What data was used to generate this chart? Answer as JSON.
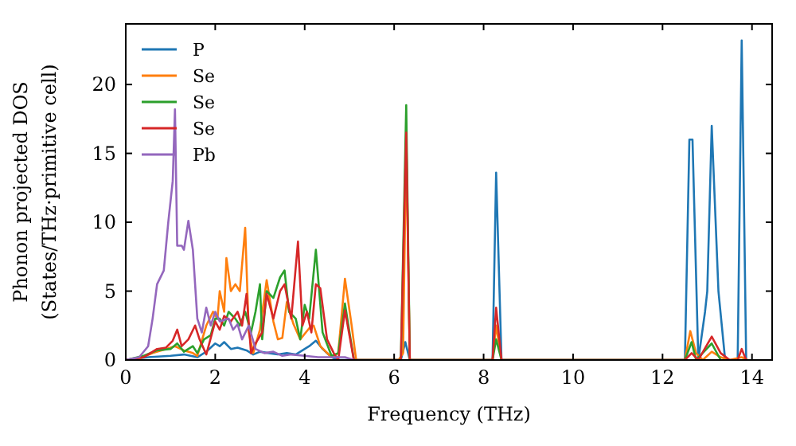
{
  "chart_data": {
    "type": "line",
    "xlabel": "Frequency (THz)",
    "ylabel": "Phonon projected DOS\n(States/THz·primitive cell)",
    "xlim": [
      0,
      14.45
    ],
    "ylim": [
      0,
      24.4
    ],
    "xticks": [
      0,
      2,
      4,
      6,
      8,
      10,
      12,
      14
    ],
    "yticks": [
      0,
      5,
      10,
      15,
      20
    ],
    "grid": false,
    "legend": "top left",
    "line_style": "solid",
    "series": [
      {
        "name": "P",
        "color": "#1f77b4",
        "x": [
          0,
          0.5,
          1,
          1.3,
          1.6,
          1.8,
          2.0,
          2.1,
          2.2,
          2.35,
          2.5,
          2.7,
          2.85,
          3.0,
          3.2,
          3.4,
          3.6,
          3.8,
          4.1,
          4.25,
          4.4,
          4.6,
          4.75,
          6.15,
          6.25,
          6.35,
          8.2,
          8.28,
          8.4,
          12.5,
          12.6,
          12.67,
          12.8,
          12.95,
          13.0,
          13.1,
          13.25,
          13.4,
          13.68,
          13.77,
          13.87
        ],
        "values": [
          0,
          0.2,
          0.3,
          0.4,
          0.2,
          0.6,
          1.2,
          1.0,
          1.3,
          0.8,
          0.9,
          0.7,
          0.4,
          0.6,
          0.5,
          0.4,
          0.5,
          0.4,
          1.0,
          1.4,
          0.8,
          0.2,
          0,
          0,
          1.3,
          0,
          0,
          13.6,
          0,
          0,
          16,
          16,
          0,
          3.5,
          5,
          17,
          5,
          0,
          0,
          23.2,
          0
        ]
      },
      {
        "name": "Se",
        "color": "#ff7f0e",
        "x": [
          0,
          0.3,
          0.6,
          0.9,
          1.1,
          1.3,
          1.5,
          1.6,
          1.8,
          1.95,
          2.05,
          2.1,
          2.2,
          2.25,
          2.35,
          2.45,
          2.55,
          2.67,
          2.75,
          2.85,
          3.0,
          3.15,
          3.3,
          3.4,
          3.5,
          3.6,
          3.75,
          3.9,
          4.1,
          4.2,
          4.35,
          4.6,
          4.75,
          4.9,
          5.05,
          5.15,
          6.1,
          6.2,
          6.27,
          6.35,
          8.2,
          8.28,
          8.4,
          12.5,
          12.62,
          12.75,
          12.9,
          13.1,
          13.3,
          13.5,
          13.77,
          13.9
        ],
        "values": [
          0,
          0.1,
          0.5,
          0.8,
          1.0,
          0.7,
          0.5,
          0.3,
          2.5,
          3.5,
          3,
          5,
          3.5,
          7.4,
          5,
          5.5,
          5,
          9.6,
          2,
          0.5,
          2.2,
          5.8,
          2.8,
          1.5,
          1.6,
          4.2,
          2.6,
          1.5,
          2.3,
          2.5,
          1,
          0.2,
          0.5,
          5.9,
          2.5,
          0,
          0,
          0.5,
          16,
          0,
          0,
          2.5,
          0,
          0,
          2.1,
          0.5,
          0,
          0.6,
          0.2,
          0,
          0.2,
          0
        ]
      },
      {
        "name": "Se",
        "color": "#2ca02c",
        "x": [
          0,
          0.4,
          0.7,
          1,
          1.15,
          1.3,
          1.5,
          1.6,
          1.75,
          1.9,
          2.0,
          2.1,
          2.2,
          2.3,
          2.45,
          2.55,
          2.67,
          2.8,
          2.9,
          3.0,
          3.05,
          3.15,
          3.3,
          3.45,
          3.55,
          3.65,
          3.8,
          3.9,
          4.0,
          4.1,
          4.25,
          4.4,
          4.6,
          4.75,
          4.9,
          5.1,
          6.15,
          6.27,
          6.35,
          8.2,
          8.28,
          8.4,
          12.5,
          12.65,
          12.75,
          13.1,
          13.3
        ],
        "values": [
          0,
          0.3,
          0.7,
          0.8,
          1.2,
          0.6,
          1,
          0.5,
          1.5,
          1.8,
          3,
          3,
          2.5,
          3.5,
          3,
          2.5,
          3.5,
          2,
          3.5,
          5.5,
          1.5,
          5,
          4.5,
          6,
          6.5,
          3.5,
          3,
          1.5,
          4,
          3,
          8,
          2,
          0.3,
          0.5,
          4.1,
          0,
          0,
          18.5,
          0,
          0,
          1.5,
          0,
          0,
          1.3,
          0,
          1.2,
          0
        ]
      },
      {
        "name": "Se",
        "color": "#d62728",
        "x": [
          0,
          0.4,
          0.7,
          0.9,
          1.05,
          1.15,
          1.25,
          1.4,
          1.55,
          1.65,
          1.8,
          2.0,
          2.1,
          2.2,
          2.35,
          2.5,
          2.6,
          2.7,
          2.8,
          2.9,
          3.05,
          3.15,
          3.3,
          3.45,
          3.55,
          3.7,
          3.85,
          3.95,
          4.05,
          4.15,
          4.25,
          4.35,
          4.5,
          4.65,
          4.75,
          4.9,
          5.1,
          6.15,
          6.27,
          6.35,
          8.2,
          8.28,
          8.4,
          12.5,
          12.65,
          12.8,
          13.1,
          13.3,
          13.5,
          13.68,
          13.77,
          13.87
        ],
        "values": [
          0,
          0.2,
          0.8,
          0.9,
          1.4,
          2.2,
          1,
          1.5,
          2.5,
          1.5,
          0.4,
          2.8,
          2.2,
          3.2,
          2.8,
          3.5,
          2.5,
          4.8,
          0.5,
          1.2,
          2,
          4.8,
          3,
          5,
          5.5,
          3,
          8.6,
          2.5,
          3.5,
          2,
          5.5,
          5.2,
          1.5,
          0.5,
          0,
          3.6,
          0,
          0,
          16.5,
          0,
          0,
          3.8,
          0,
          0,
          0.5,
          0,
          1.7,
          0.5,
          0,
          0,
          0.8,
          0
        ]
      },
      {
        "name": "Pb",
        "color": "#9467bd",
        "x": [
          0,
          0.3,
          0.5,
          0.6,
          0.7,
          0.85,
          0.95,
          1.05,
          1.1,
          1.15,
          1.25,
          1.3,
          1.4,
          1.5,
          1.6,
          1.7,
          1.8,
          1.9,
          2.0,
          2.1,
          2.3,
          2.4,
          2.5,
          2.6,
          2.75,
          2.9,
          3.1,
          3.3,
          3.5,
          3.7,
          4.0,
          4.3,
          4.9,
          5.1
        ],
        "values": [
          0,
          0.2,
          1,
          3,
          5.5,
          6.5,
          10,
          13,
          18.2,
          8.3,
          8.3,
          8,
          10.1,
          8,
          3,
          2,
          3.8,
          2.5,
          3.5,
          2.8,
          3,
          2.2,
          2.6,
          1.5,
          2.5,
          0.8,
          0.5,
          0.6,
          0.3,
          0.4,
          0.3,
          0.2,
          0.2,
          0
        ]
      }
    ]
  }
}
